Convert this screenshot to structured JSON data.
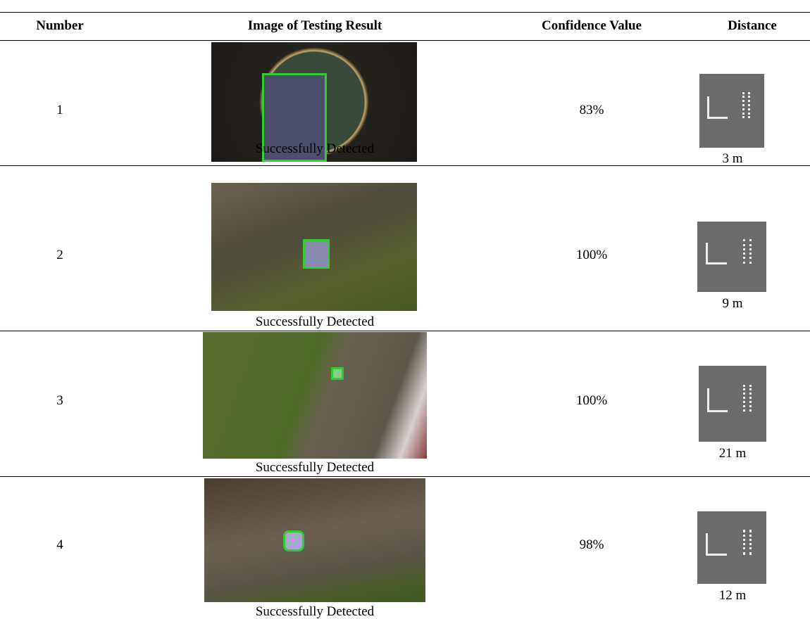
{
  "table": {
    "header": [
      "Number",
      "Image of Testing Result",
      "Confidence Value",
      "Distance"
    ],
    "rows": [
      {
        "number": "1",
        "caption": "Successfully Detected",
        "confidence": "83%",
        "distance": "3 m"
      },
      {
        "number": "2",
        "caption": "Successfully Detected",
        "confidence": "100%",
        "distance": "9 m"
      },
      {
        "number": "3",
        "caption": "Successfully Detected",
        "confidence": "100%",
        "distance": "21 m"
      },
      {
        "number": "4",
        "caption": "Successfully Detected",
        "confidence": "98%",
        "distance": "12 m"
      }
    ]
  }
}
